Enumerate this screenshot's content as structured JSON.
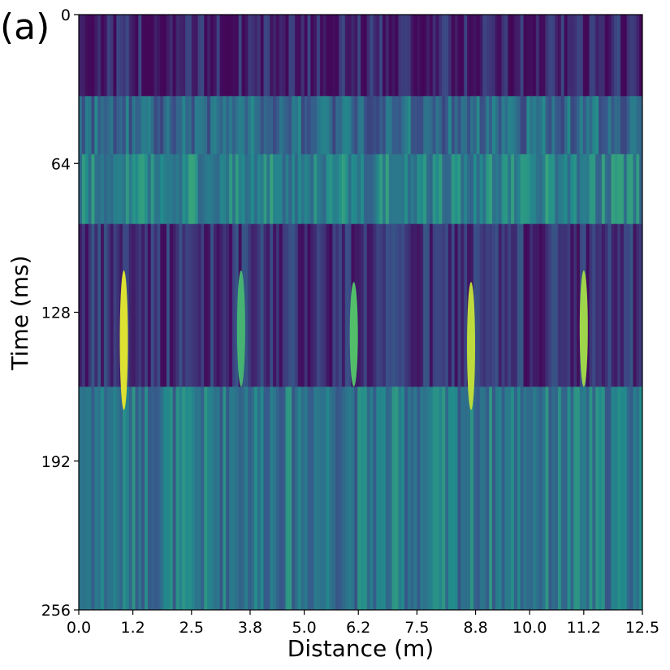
{
  "chart_data": {
    "type": "heatmap",
    "panel_label": "(a)",
    "xlabel": "Distance (m)",
    "ylabel": "Time (ms)",
    "xlim": [
      0.0,
      12.5
    ],
    "ylim": [
      256,
      0
    ],
    "x_ticks": [
      0.0,
      1.2,
      2.5,
      3.8,
      5.0,
      6.2,
      7.5,
      8.8,
      10.0,
      11.2,
      12.5
    ],
    "x_tick_labels": [
      "0.0",
      "1.2",
      "2.5",
      "3.8",
      "5.0",
      "6.2",
      "7.5",
      "8.8",
      "10.0",
      "11.2",
      "12.5"
    ],
    "y_ticks": [
      0,
      64,
      128,
      192,
      256
    ],
    "y_tick_labels": [
      "0",
      "64",
      "128",
      "192",
      "256"
    ],
    "colormap": "viridis",
    "grid": false,
    "bands": [
      {
        "t_start": 0,
        "t_end": 35,
        "intensity": 0.1
      },
      {
        "t_start": 35,
        "t_end": 60,
        "intensity": 0.35
      },
      {
        "t_start": 60,
        "t_end": 90,
        "intensity": 0.45
      },
      {
        "t_start": 90,
        "t_end": 160,
        "intensity": 0.15
      },
      {
        "t_start": 160,
        "t_end": 256,
        "intensity": 0.4
      }
    ],
    "bright_streaks": [
      {
        "distance": 1.0,
        "t_start": 110,
        "t_end": 170,
        "intensity": 0.95
      },
      {
        "distance": 3.6,
        "t_start": 110,
        "t_end": 160,
        "intensity": 0.65
      },
      {
        "distance": 6.1,
        "t_start": 115,
        "t_end": 160,
        "intensity": 0.7
      },
      {
        "distance": 8.7,
        "t_start": 115,
        "t_end": 170,
        "intensity": 0.9
      },
      {
        "distance": 11.2,
        "t_start": 110,
        "t_end": 160,
        "intensity": 0.85
      }
    ],
    "colors": {
      "low": "#440154",
      "mid_low": "#3b528b",
      "mid": "#21918c",
      "mid_high": "#5ec962",
      "high": "#fde725"
    }
  }
}
